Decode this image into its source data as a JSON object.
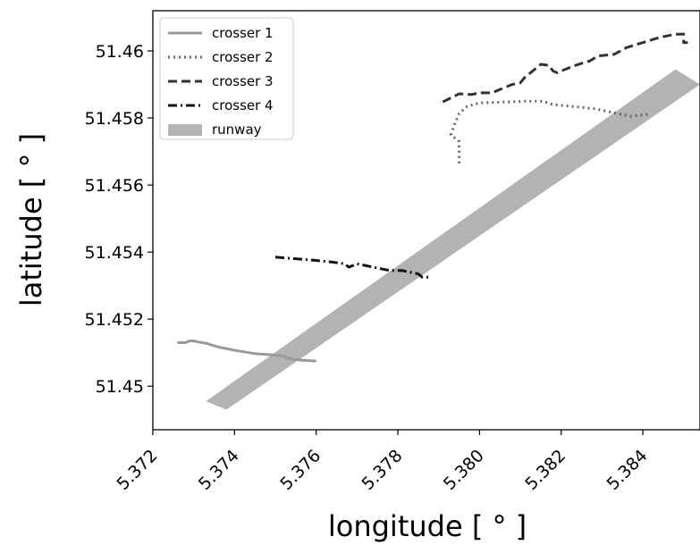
{
  "chart_data": {
    "type": "line",
    "title": "",
    "xlabel": "longitude  [$^\\circ$]",
    "ylabel": "latitude  [$^\\circ$]",
    "xlabel_display": "longitude  [ ° ]",
    "ylabel_display": "latitude  [ ° ]",
    "xlim": [
      5.372,
      5.3854
    ],
    "ylim": [
      51.4487,
      51.4612
    ],
    "xticks": [
      5.372,
      5.374,
      5.376,
      5.378,
      5.38,
      5.382,
      5.384
    ],
    "xtick_labels": [
      "5.372",
      "5.374",
      "5.376",
      "5.378",
      "5.380",
      "5.382",
      "5.384"
    ],
    "yticks": [
      51.45,
      51.452,
      51.454,
      51.456,
      51.458,
      51.46
    ],
    "ytick_labels": [
      "51.45",
      "51.452",
      "51.454",
      "51.456",
      "51.458",
      "51.46"
    ],
    "grid": false,
    "legend_position": "top-left",
    "series": [
      {
        "name": "crosser 1",
        "style": "solid",
        "color": "#999999",
        "x": [
          5.3726,
          5.3728,
          5.3729,
          5.373,
          5.3731,
          5.3733,
          5.3736,
          5.374,
          5.3745,
          5.375,
          5.3752,
          5.3753,
          5.3756,
          5.376
        ],
        "y": [
          51.4513,
          51.4513,
          51.45135,
          51.45135,
          51.45132,
          51.45128,
          51.45117,
          51.45107,
          51.45097,
          51.45093,
          51.4509,
          51.45083,
          51.45078,
          51.45075
        ]
      },
      {
        "name": "crosser 2",
        "style": "dotted",
        "color": "#666666",
        "x": [
          5.3795,
          5.3795,
          5.3795,
          5.3793,
          5.3794,
          5.3795,
          5.3797,
          5.38,
          5.3805,
          5.3811,
          5.3815,
          5.3816,
          5.3818,
          5.3824,
          5.3828,
          5.3832,
          5.3835,
          5.3837,
          5.3839,
          5.3842
        ],
        "y": [
          51.45665,
          51.45705,
          51.4573,
          51.4575,
          51.45785,
          51.45813,
          51.45835,
          51.45845,
          51.45847,
          51.4585,
          51.4585,
          51.45848,
          51.4584,
          51.45833,
          51.45828,
          51.45818,
          51.4581,
          51.45805,
          51.45808,
          51.45812
        ]
      },
      {
        "name": "crosser 3",
        "style": "dashed",
        "color": "#333333",
        "x": [
          5.3791,
          5.3795,
          5.3798,
          5.38,
          5.3803,
          5.3805,
          5.3808,
          5.381,
          5.3811,
          5.3815,
          5.3817,
          5.3818,
          5.3819,
          5.3821,
          5.3823,
          5.3825,
          5.3827,
          5.3829,
          5.3833,
          5.3836,
          5.384,
          5.3844,
          5.3848,
          5.385,
          5.385,
          5.3851
        ],
        "y": [
          51.45848,
          51.45872,
          51.4587,
          51.45875,
          51.45875,
          51.45885,
          51.459,
          51.45905,
          51.4592,
          51.4596,
          51.45957,
          51.4594,
          51.45935,
          51.45945,
          51.45955,
          51.45963,
          51.4597,
          51.45985,
          51.4599,
          51.4601,
          51.46025,
          51.4604,
          51.4605,
          51.4605,
          51.46025,
          51.46025
        ]
      },
      {
        "name": "crosser 4",
        "style": "dashdot",
        "color": "#111111",
        "x": [
          5.375,
          5.3755,
          5.376,
          5.3764,
          5.3767,
          5.3768,
          5.377,
          5.3774,
          5.3778,
          5.3781,
          5.3785,
          5.3786,
          5.3788
        ],
        "y": [
          51.45385,
          51.4538,
          51.45375,
          51.4537,
          51.45365,
          51.45355,
          51.45365,
          51.45355,
          51.45345,
          51.45345,
          51.45335,
          51.45325,
          51.45325
        ]
      },
      {
        "name": "runway",
        "style": "band",
        "color": "#b3b3b3",
        "polygon": [
          [
            5.3733,
            51.44955
          ],
          [
            5.3738,
            51.4493
          ],
          [
            5.3854,
            51.459
          ],
          [
            5.3848,
            51.45945
          ]
        ]
      }
    ]
  }
}
